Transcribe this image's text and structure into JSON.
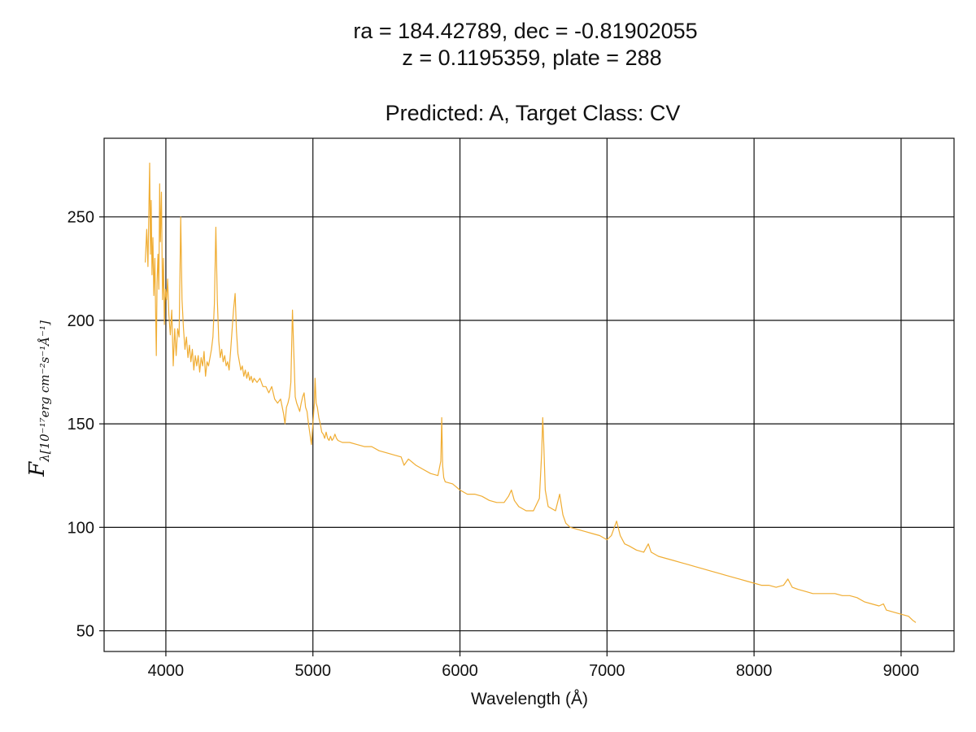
{
  "chart_data": {
    "type": "line",
    "title_lines": [
      "ra = 184.42789, dec = -0.81902055",
      "z = 0.1195359, plate = 288",
      "Predicted: A, Target Class: CV"
    ],
    "xlabel": "Wavelength (Å)",
    "ylabel": {
      "main": "F",
      "subscript": "λ[10⁻¹⁷erg cm⁻²s⁻¹Å⁻¹]"
    },
    "xlim": [
      3580,
      9360
    ],
    "ylim": [
      40,
      288
    ],
    "xticks": [
      4000,
      5000,
      6000,
      7000,
      8000,
      9000
    ],
    "yticks": [
      50,
      100,
      150,
      200,
      250
    ],
    "grid": true,
    "line_color": "#f0ad33",
    "series": [
      {
        "points": [
          [
            3860,
            228
          ],
          [
            3870,
            244
          ],
          [
            3878,
            226
          ],
          [
            3885,
            255
          ],
          [
            3890,
            276
          ],
          [
            3895,
            232
          ],
          [
            3900,
            258
          ],
          [
            3906,
            222
          ],
          [
            3912,
            240
          ],
          [
            3918,
            212
          ],
          [
            3925,
            230
          ],
          [
            3930,
            205
          ],
          [
            3935,
            183
          ],
          [
            3940,
            218
          ],
          [
            3946,
            232
          ],
          [
            3952,
            215
          ],
          [
            3958,
            266
          ],
          [
            3963,
            238
          ],
          [
            3970,
            262
          ],
          [
            3977,
            210
          ],
          [
            3984,
            230
          ],
          [
            3990,
            198
          ],
          [
            3997,
            215
          ],
          [
            4005,
            210
          ],
          [
            4012,
            220
          ],
          [
            4020,
            203
          ],
          [
            4030,
            193
          ],
          [
            4040,
            205
          ],
          [
            4050,
            178
          ],
          [
            4060,
            196
          ],
          [
            4070,
            183
          ],
          [
            4080,
            196
          ],
          [
            4090,
            192
          ],
          [
            4101,
            250
          ],
          [
            4110,
            210
          ],
          [
            4120,
            196
          ],
          [
            4130,
            186
          ],
          [
            4140,
            192
          ],
          [
            4150,
            182
          ],
          [
            4160,
            188
          ],
          [
            4170,
            180
          ],
          [
            4180,
            186
          ],
          [
            4190,
            176
          ],
          [
            4200,
            183
          ],
          [
            4210,
            178
          ],
          [
            4220,
            183
          ],
          [
            4230,
            175
          ],
          [
            4240,
            182
          ],
          [
            4250,
            178
          ],
          [
            4260,
            185
          ],
          [
            4270,
            173
          ],
          [
            4280,
            180
          ],
          [
            4290,
            178
          ],
          [
            4300,
            182
          ],
          [
            4310,
            186
          ],
          [
            4320,
            192
          ],
          [
            4330,
            208
          ],
          [
            4340,
            245
          ],
          [
            4350,
            210
          ],
          [
            4360,
            190
          ],
          [
            4370,
            182
          ],
          [
            4380,
            186
          ],
          [
            4390,
            180
          ],
          [
            4400,
            183
          ],
          [
            4410,
            178
          ],
          [
            4420,
            180
          ],
          [
            4430,
            176
          ],
          [
            4440,
            185
          ],
          [
            4450,
            195
          ],
          [
            4460,
            205
          ],
          [
            4471,
            213
          ],
          [
            4480,
            195
          ],
          [
            4490,
            184
          ],
          [
            4500,
            180
          ],
          [
            4510,
            176
          ],
          [
            4520,
            178
          ],
          [
            4530,
            173
          ],
          [
            4540,
            176
          ],
          [
            4550,
            172
          ],
          [
            4560,
            175
          ],
          [
            4570,
            171
          ],
          [
            4580,
            173
          ],
          [
            4590,
            170
          ],
          [
            4600,
            172
          ],
          [
            4620,
            170
          ],
          [
            4640,
            172
          ],
          [
            4660,
            168
          ],
          [
            4680,
            168
          ],
          [
            4700,
            165
          ],
          [
            4720,
            168
          ],
          [
            4740,
            162
          ],
          [
            4760,
            160
          ],
          [
            4780,
            162
          ],
          [
            4800,
            155
          ],
          [
            4810,
            150
          ],
          [
            4820,
            158
          ],
          [
            4830,
            160
          ],
          [
            4840,
            163
          ],
          [
            4850,
            170
          ],
          [
            4861,
            205
          ],
          [
            4870,
            185
          ],
          [
            4880,
            163
          ],
          [
            4890,
            160
          ],
          [
            4900,
            158
          ],
          [
            4910,
            156
          ],
          [
            4920,
            160
          ],
          [
            4930,
            163
          ],
          [
            4940,
            165
          ],
          [
            4950,
            158
          ],
          [
            4960,
            156
          ],
          [
            4970,
            150
          ],
          [
            4980,
            145
          ],
          [
            4990,
            140
          ],
          [
            5000,
            150
          ],
          [
            5010,
            160
          ],
          [
            5015,
            172
          ],
          [
            5022,
            160
          ],
          [
            5030,
            158
          ],
          [
            5040,
            153
          ],
          [
            5050,
            150
          ],
          [
            5060,
            146
          ],
          [
            5070,
            145
          ],
          [
            5080,
            143
          ],
          [
            5090,
            146
          ],
          [
            5100,
            143
          ],
          [
            5110,
            142
          ],
          [
            5120,
            144
          ],
          [
            5130,
            142
          ],
          [
            5140,
            143
          ],
          [
            5150,
            145
          ],
          [
            5160,
            143
          ],
          [
            5170,
            142
          ],
          [
            5200,
            141
          ],
          [
            5250,
            141
          ],
          [
            5300,
            140
          ],
          [
            5350,
            139
          ],
          [
            5400,
            139
          ],
          [
            5450,
            137
          ],
          [
            5500,
            136
          ],
          [
            5550,
            135
          ],
          [
            5600,
            134
          ],
          [
            5620,
            130
          ],
          [
            5650,
            133
          ],
          [
            5700,
            130
          ],
          [
            5750,
            128
          ],
          [
            5800,
            126
          ],
          [
            5850,
            125
          ],
          [
            5870,
            132
          ],
          [
            5876,
            153
          ],
          [
            5882,
            130
          ],
          [
            5890,
            124
          ],
          [
            5900,
            122
          ],
          [
            5950,
            121
          ],
          [
            6000,
            118
          ],
          [
            6050,
            116
          ],
          [
            6100,
            116
          ],
          [
            6150,
            115
          ],
          [
            6200,
            113
          ],
          [
            6250,
            112
          ],
          [
            6300,
            112
          ],
          [
            6330,
            115
          ],
          [
            6350,
            118
          ],
          [
            6370,
            113
          ],
          [
            6400,
            110
          ],
          [
            6450,
            108
          ],
          [
            6500,
            108
          ],
          [
            6540,
            114
          ],
          [
            6556,
            136
          ],
          [
            6563,
            153
          ],
          [
            6570,
            140
          ],
          [
            6580,
            118
          ],
          [
            6600,
            110
          ],
          [
            6650,
            108
          ],
          [
            6678,
            116
          ],
          [
            6700,
            106
          ],
          [
            6720,
            102
          ],
          [
            6750,
            100
          ],
          [
            6800,
            99
          ],
          [
            6850,
            98
          ],
          [
            6900,
            97
          ],
          [
            6950,
            96
          ],
          [
            7000,
            94
          ],
          [
            7030,
            96
          ],
          [
            7065,
            103
          ],
          [
            7090,
            96
          ],
          [
            7120,
            92
          ],
          [
            7150,
            91
          ],
          [
            7200,
            89
          ],
          [
            7250,
            88
          ],
          [
            7281,
            92
          ],
          [
            7300,
            88
          ],
          [
            7350,
            86
          ],
          [
            7400,
            85
          ],
          [
            7450,
            84
          ],
          [
            7500,
            83
          ],
          [
            7550,
            82
          ],
          [
            7600,
            81
          ],
          [
            7650,
            80
          ],
          [
            7700,
            79
          ],
          [
            7750,
            78
          ],
          [
            7800,
            77
          ],
          [
            7850,
            76
          ],
          [
            7900,
            75
          ],
          [
            7950,
            74
          ],
          [
            8000,
            73
          ],
          [
            8050,
            72
          ],
          [
            8100,
            72
          ],
          [
            8150,
            71
          ],
          [
            8200,
            72
          ],
          [
            8230,
            75
          ],
          [
            8260,
            71
          ],
          [
            8300,
            70
          ],
          [
            8350,
            69
          ],
          [
            8400,
            68
          ],
          [
            8450,
            68
          ],
          [
            8500,
            68
          ],
          [
            8550,
            68
          ],
          [
            8600,
            67
          ],
          [
            8650,
            67
          ],
          [
            8700,
            66
          ],
          [
            8750,
            64
          ],
          [
            8800,
            63
          ],
          [
            8850,
            62
          ],
          [
            8880,
            63
          ],
          [
            8900,
            60
          ],
          [
            8950,
            59
          ],
          [
            9000,
            58
          ],
          [
            9050,
            57
          ],
          [
            9080,
            55
          ],
          [
            9100,
            54
          ]
        ]
      }
    ]
  }
}
